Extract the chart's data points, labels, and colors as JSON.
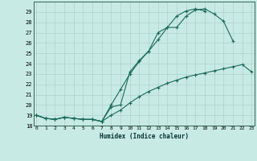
{
  "title": "",
  "xlabel": "Humidex (Indice chaleur)",
  "background_color": "#c8eae4",
  "grid_color": "#b0d0cc",
  "line_color": "#1a6b5a",
  "x_values": [
    0,
    1,
    2,
    3,
    4,
    5,
    6,
    7,
    8,
    9,
    10,
    11,
    12,
    13,
    14,
    15,
    16,
    17,
    18,
    19,
    20,
    21,
    22,
    23
  ],
  "line1": [
    19.0,
    18.7,
    18.6,
    18.8,
    18.7,
    18.6,
    18.6,
    18.4,
    20.0,
    21.5,
    23.0,
    24.2,
    25.2,
    26.3,
    27.5,
    27.5,
    28.6,
    29.2,
    29.3,
    28.8,
    28.1,
    26.2,
    null,
    null
  ],
  "line2": [
    19.0,
    18.7,
    18.6,
    18.8,
    18.7,
    18.6,
    18.6,
    18.4,
    19.8,
    20.0,
    23.2,
    24.3,
    25.2,
    27.0,
    27.5,
    28.6,
    29.1,
    29.3,
    29.1,
    null,
    null,
    null,
    null,
    null
  ],
  "line3": [
    19.0,
    18.7,
    18.6,
    18.8,
    18.7,
    18.6,
    18.6,
    18.4,
    19.0,
    19.5,
    20.2,
    20.8,
    21.3,
    21.7,
    22.1,
    22.4,
    22.7,
    22.9,
    23.1,
    23.3,
    23.5,
    23.7,
    23.9,
    23.2
  ],
  "ylim": [
    18,
    30
  ],
  "xlim": [
    -0.3,
    23.3
  ],
  "yticks": [
    18,
    19,
    20,
    21,
    22,
    23,
    24,
    25,
    26,
    27,
    28,
    29
  ],
  "xticks": [
    0,
    1,
    2,
    3,
    4,
    5,
    6,
    7,
    8,
    9,
    10,
    11,
    12,
    13,
    14,
    15,
    16,
    17,
    18,
    19,
    20,
    21,
    22,
    23
  ]
}
